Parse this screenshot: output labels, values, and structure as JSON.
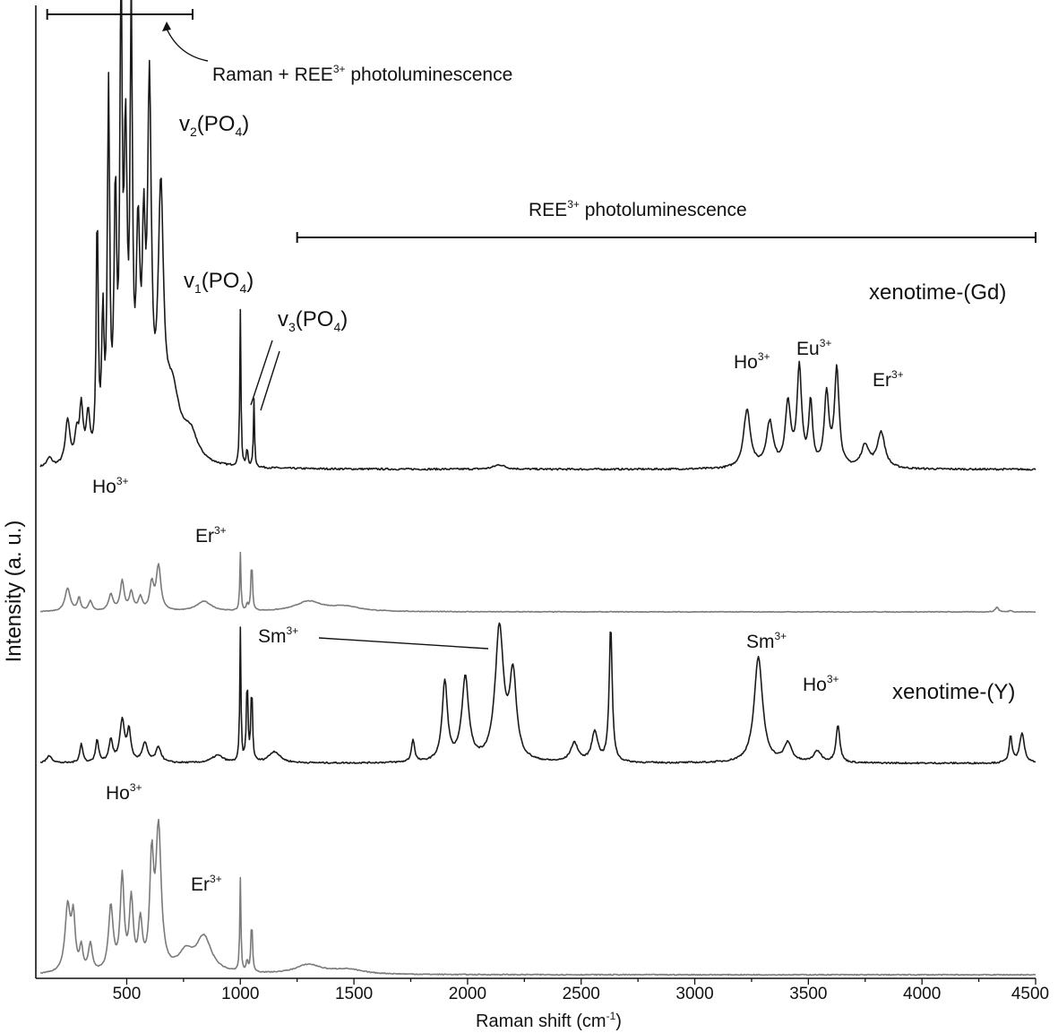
{
  "chart_data": {
    "type": "line",
    "xlabel_main": "Raman shift (cm",
    "xlabel_sup": "-1",
    "xlabel_tail": ")",
    "ylabel": "Intensity (a. u.)",
    "xlim": [
      100,
      4500
    ],
    "x_ticks": [
      "500",
      "1000",
      "1500",
      "2000",
      "2500",
      "3000",
      "3500",
      "4000",
      "4500"
    ],
    "x_tick_values": [
      500,
      1000,
      1500,
      2000,
      2500,
      3000,
      3500,
      4000,
      4500
    ],
    "colors": {
      "black": "#1a1a1a",
      "gray": "#7a7a7a"
    },
    "brackets": [
      {
        "from": 150,
        "to": 790
      },
      {
        "from": 1250,
        "to": 4500
      }
    ],
    "annotations": {
      "raman_ree": {
        "main": "Raman + REE",
        "sup": "3+",
        "tail": " photoluminescence"
      },
      "ree_pl": {
        "main": "REE",
        "sup": "3+",
        "tail": " photoluminescence"
      },
      "v2": {
        "main": "v",
        "sub": "2",
        "mid": "(PO",
        "sub2": "4",
        "tail": ")"
      },
      "v1": {
        "main": "v",
        "sub": "1",
        "mid": "(PO",
        "sub2": "4",
        "tail": ")"
      },
      "v3": {
        "main": "v",
        "sub": "3",
        "mid": "(PO",
        "sub2": "4",
        "tail": ")"
      },
      "xen_gd": "xenotime-(Gd)",
      "xen_y": "xenotime-(Y)",
      "ion_ho": {
        "main": "Ho",
        "sup": "3+"
      },
      "ion_eu": {
        "main": "Eu",
        "sup": "3+"
      },
      "ion_er": {
        "main": "Er",
        "sup": "3+"
      },
      "ion_sm": {
        "main": "Sm",
        "sup": "3+"
      }
    },
    "series": [
      {
        "color": "black",
        "baseline": 0.0,
        "peaks": [
          [
            160,
            0.02,
            14
          ],
          [
            240,
            0.1,
            12
          ],
          [
            280,
            0.06,
            10
          ],
          [
            300,
            0.12,
            9
          ],
          [
            330,
            0.1,
            10
          ],
          [
            370,
            0.55,
            5
          ],
          [
            395,
            0.3,
            6
          ],
          [
            420,
            0.8,
            6
          ],
          [
            450,
            0.55,
            7
          ],
          [
            475,
            1.0,
            6
          ],
          [
            495,
            0.65,
            8
          ],
          [
            520,
            0.95,
            6
          ],
          [
            550,
            0.45,
            10
          ],
          [
            575,
            0.4,
            8
          ],
          [
            600,
            0.78,
            10
          ],
          [
            650,
            0.55,
            14
          ],
          [
            700,
            0.15,
            40
          ],
          [
            780,
            0.06,
            40
          ],
          [
            1000,
            0.35,
            3
          ],
          [
            1030,
            0.04,
            4
          ],
          [
            1060,
            0.15,
            3
          ],
          [
            2140,
            0.01,
            30
          ],
          [
            3230,
            0.13,
            18
          ],
          [
            3330,
            0.1,
            18
          ],
          [
            3410,
            0.14,
            14
          ],
          [
            3460,
            0.22,
            12
          ],
          [
            3510,
            0.14,
            10
          ],
          [
            3580,
            0.16,
            12
          ],
          [
            3625,
            0.22,
            12
          ],
          [
            3750,
            0.05,
            20
          ],
          [
            3820,
            0.08,
            20
          ]
        ]
      },
      {
        "color": "gray",
        "baseline": 0.0,
        "peaks": [
          [
            240,
            0.14,
            14
          ],
          [
            290,
            0.08,
            8
          ],
          [
            340,
            0.06,
            10
          ],
          [
            430,
            0.1,
            12
          ],
          [
            480,
            0.18,
            10
          ],
          [
            520,
            0.11,
            10
          ],
          [
            560,
            0.08,
            10
          ],
          [
            610,
            0.16,
            10
          ],
          [
            640,
            0.27,
            12
          ],
          [
            840,
            0.06,
            40
          ],
          [
            1000,
            0.35,
            3
          ],
          [
            1030,
            0.04,
            4
          ],
          [
            1050,
            0.3,
            4
          ],
          [
            1300,
            0.06,
            70
          ],
          [
            1460,
            0.03,
            80
          ],
          [
            4330,
            0.03,
            8
          ],
          [
            4390,
            0.01,
            6
          ]
        ]
      },
      {
        "color": "black",
        "baseline": 0.0,
        "peaks": [
          [
            160,
            0.02,
            14
          ],
          [
            300,
            0.05,
            8
          ],
          [
            370,
            0.06,
            8
          ],
          [
            430,
            0.06,
            10
          ],
          [
            480,
            0.11,
            12
          ],
          [
            510,
            0.08,
            10
          ],
          [
            580,
            0.05,
            14
          ],
          [
            640,
            0.04,
            14
          ],
          [
            900,
            0.02,
            30
          ],
          [
            1000,
            0.35,
            3
          ],
          [
            1030,
            0.22,
            4
          ],
          [
            1050,
            0.2,
            4
          ],
          [
            1150,
            0.03,
            30
          ],
          [
            1760,
            0.06,
            8
          ],
          [
            1900,
            0.21,
            14
          ],
          [
            1990,
            0.22,
            18
          ],
          [
            2140,
            0.35,
            22
          ],
          [
            2200,
            0.22,
            18
          ],
          [
            2470,
            0.05,
            20
          ],
          [
            2560,
            0.08,
            16
          ],
          [
            2630,
            0.36,
            8
          ],
          [
            3280,
            0.28,
            22
          ],
          [
            3410,
            0.05,
            20
          ],
          [
            3540,
            0.03,
            20
          ],
          [
            3630,
            0.1,
            10
          ],
          [
            4390,
            0.07,
            8
          ],
          [
            4440,
            0.08,
            12
          ]
        ]
      },
      {
        "color": "gray",
        "baseline": 0.0,
        "peaks": [
          [
            240,
            0.28,
            14
          ],
          [
            265,
            0.22,
            10
          ],
          [
            300,
            0.1,
            8
          ],
          [
            340,
            0.12,
            10
          ],
          [
            430,
            0.28,
            12
          ],
          [
            480,
            0.4,
            10
          ],
          [
            520,
            0.3,
            10
          ],
          [
            560,
            0.2,
            10
          ],
          [
            610,
            0.45,
            10
          ],
          [
            640,
            0.6,
            14
          ],
          [
            760,
            0.08,
            40
          ],
          [
            840,
            0.15,
            40
          ],
          [
            1000,
            0.4,
            3
          ],
          [
            1030,
            0.05,
            4
          ],
          [
            1050,
            0.22,
            4
          ],
          [
            1300,
            0.04,
            70
          ],
          [
            1470,
            0.02,
            80
          ]
        ]
      }
    ]
  }
}
